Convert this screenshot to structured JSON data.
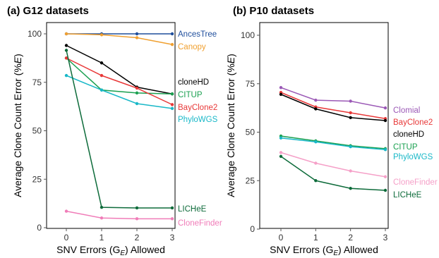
{
  "chart_data": [
    {
      "type": "line",
      "panel_letter": "a",
      "title": "G12 datasets",
      "xlabel": "SNV Errors (G",
      "xlabel_sub": "E",
      "xlabel_suffix": ") Allowed",
      "ylabel": "Average Clone Count Error (%",
      "ylabel_italic": "E",
      "ylabel_suffix": ")",
      "x": [
        0,
        1,
        2,
        3
      ],
      "x_ticks": [
        "0",
        "1",
        "2",
        "3"
      ],
      "y_ticks": [
        "0",
        "25",
        "50",
        "75",
        "100"
      ],
      "ylim": [
        0,
        100
      ],
      "grid": false,
      "legend": "series labels at right end of lines",
      "series": [
        {
          "name": "AncesTree",
          "color": "#1f4e9c",
          "values": [
            100,
            100,
            100,
            100
          ]
        },
        {
          "name": "Canopy",
          "color": "#f0a030",
          "values": [
            100,
            99.5,
            98,
            94.5
          ]
        },
        {
          "name": "cloneHD",
          "color": "#000000",
          "values": [
            94,
            85,
            72.5,
            69
          ]
        },
        {
          "name": "CITUP",
          "color": "#1aa050",
          "values": [
            87.5,
            71,
            69.5,
            69
          ]
        },
        {
          "name": "BayClone2",
          "color": "#e83838",
          "values": [
            87.5,
            78.5,
            72,
            63.5
          ]
        },
        {
          "name": "PhyloWGS",
          "color": "#19b8c8",
          "values": [
            78.5,
            71,
            64,
            61.5
          ]
        },
        {
          "name": "LICHeE",
          "color": "#0d6b3a",
          "values": [
            91.5,
            10.5,
            10.2,
            10.2
          ]
        },
        {
          "name": "CloneFinder",
          "color": "#f07cb8",
          "values": [
            8.5,
            5,
            4.6,
            4.6
          ]
        }
      ]
    },
    {
      "type": "line",
      "panel_letter": "b",
      "title": "P10 datasets",
      "xlabel": "SNV Errors (G",
      "xlabel_sub": "E",
      "xlabel_suffix": ") Allowed",
      "ylabel": "Average Clone Count Error (%",
      "ylabel_italic": "E",
      "ylabel_suffix": ")",
      "x": [
        0,
        1,
        2,
        3
      ],
      "x_ticks": [
        "0",
        "1",
        "2",
        "3"
      ],
      "y_ticks": [
        "0",
        "25",
        "50",
        "75",
        "100"
      ],
      "ylim": [
        0,
        100
      ],
      "grid": false,
      "legend": "series labels at right end of lines",
      "series": [
        {
          "name": "Clomial",
          "color": "#9b59b6",
          "values": [
            73,
            66.5,
            66,
            62.5
          ]
        },
        {
          "name": "BayClone2",
          "color": "#e83838",
          "values": [
            70.5,
            63,
            60,
            57
          ]
        },
        {
          "name": "cloneHD",
          "color": "#000000",
          "values": [
            69.5,
            62,
            57.5,
            56
          ]
        },
        {
          "name": "CITUP",
          "color": "#1aa050",
          "values": [
            48,
            45.5,
            43,
            41.5
          ]
        },
        {
          "name": "PhyloWGS",
          "color": "#19b8c8",
          "values": [
            47,
            45,
            42.5,
            41
          ]
        },
        {
          "name": "CloneFinder",
          "color": "#f5a0c8",
          "values": [
            39.5,
            34,
            30,
            27
          ]
        },
        {
          "name": "LICHeE",
          "color": "#0d6b3a",
          "values": [
            37.5,
            25,
            21,
            20
          ]
        }
      ]
    }
  ]
}
